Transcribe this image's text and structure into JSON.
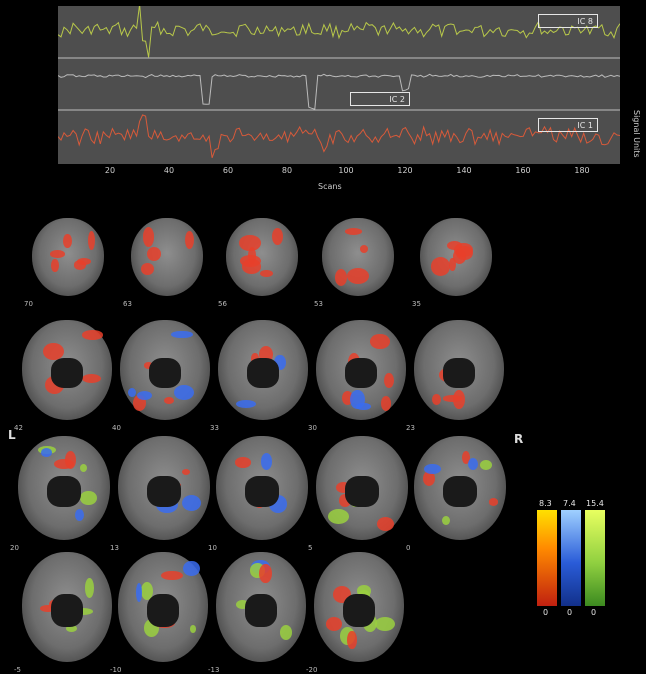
{
  "figure": {
    "timecourse": {
      "components": [
        {
          "label": "IC 8",
          "color": "#b8c84a"
        },
        {
          "label": "IC 2",
          "color": "#bbbbbb"
        },
        {
          "label": "IC 1",
          "color": "#d85a3a"
        }
      ],
      "x_ticks": [
        "20",
        "40",
        "60",
        "80",
        "100",
        "120",
        "140",
        "160",
        "180"
      ],
      "x_label": "Scans",
      "y_label": "Signal Units"
    },
    "orientation": {
      "left": "L",
      "right": "R"
    },
    "slice_labels": [
      "70",
      "63",
      "56",
      "53",
      "35",
      "42",
      "40",
      "33",
      "30",
      "23",
      "20",
      "13",
      "10",
      "5",
      "0",
      "-5",
      "-10",
      "-13",
      "-20"
    ],
    "colorbar": {
      "max_labels": [
        "8.3",
        "7.4",
        "15.4"
      ],
      "min_labels": [
        "0",
        "0",
        "0"
      ],
      "colors": [
        "#ffe000",
        "#2a5cd8",
        "#90d040"
      ]
    }
  }
}
